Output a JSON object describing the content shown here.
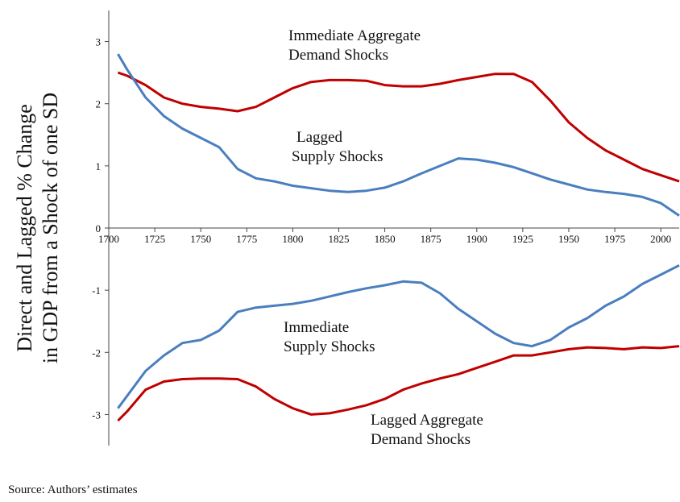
{
  "chart_data": {
    "type": "line",
    "y_label": "Direct and Lagged % Change in GDP from a Shock of one SD",
    "source": "Source: Authors’ estimates",
    "x": [
      1705,
      1710,
      1720,
      1730,
      1740,
      1750,
      1760,
      1770,
      1780,
      1790,
      1800,
      1810,
      1820,
      1830,
      1840,
      1850,
      1860,
      1870,
      1880,
      1890,
      1900,
      1910,
      1920,
      1930,
      1940,
      1950,
      1960,
      1970,
      1980,
      1990,
      2000,
      2010
    ],
    "series": [
      {
        "name": "Immediate Aggregate Demand Shocks",
        "color": "#c00000",
        "values": [
          2.5,
          2.45,
          2.3,
          2.1,
          2.0,
          1.95,
          1.92,
          1.88,
          1.95,
          2.1,
          2.25,
          2.35,
          2.38,
          2.38,
          2.37,
          2.3,
          2.28,
          2.28,
          2.32,
          2.38,
          2.43,
          2.48,
          2.48,
          2.35,
          2.05,
          1.7,
          1.45,
          1.25,
          1.1,
          0.95,
          0.85,
          0.75
        ]
      },
      {
        "name": "Lagged Supply Shocks",
        "color": "#4a7ebf",
        "values": [
          2.8,
          2.55,
          2.1,
          1.8,
          1.6,
          1.45,
          1.3,
          0.95,
          0.8,
          0.75,
          0.68,
          0.64,
          0.6,
          0.58,
          0.6,
          0.65,
          0.75,
          0.88,
          1.0,
          1.12,
          1.1,
          1.05,
          0.98,
          0.88,
          0.78,
          0.7,
          0.62,
          0.58,
          0.55,
          0.5,
          0.4,
          0.2
        ]
      },
      {
        "name": "Immediate Supply Shocks",
        "color": "#4a7ebf",
        "values": [
          -2.9,
          -2.7,
          -2.3,
          -2.05,
          -1.85,
          -1.8,
          -1.65,
          -1.35,
          -1.28,
          -1.25,
          -1.22,
          -1.17,
          -1.1,
          -1.03,
          -0.97,
          -0.92,
          -0.86,
          -0.88,
          -1.05,
          -1.3,
          -1.5,
          -1.7,
          -1.85,
          -1.9,
          -1.8,
          -1.6,
          -1.45,
          -1.25,
          -1.1,
          -0.9,
          -0.75,
          -0.6
        ]
      },
      {
        "name": "Lagged Aggregate Demand Shocks",
        "color": "#c00000",
        "values": [
          -3.1,
          -2.95,
          -2.6,
          -2.47,
          -2.43,
          -2.42,
          -2.42,
          -2.43,
          -2.55,
          -2.75,
          -2.9,
          -3.0,
          -2.98,
          -2.92,
          -2.85,
          -2.75,
          -2.6,
          -2.5,
          -2.42,
          -2.35,
          -2.25,
          -2.15,
          -2.05,
          -2.05,
          -2.0,
          -1.95,
          -1.92,
          -1.93,
          -1.95,
          -1.92,
          -1.93,
          -1.9
        ]
      }
    ],
    "xlim": [
      1700,
      2010
    ],
    "xticks": [
      1700,
      1725,
      1750,
      1775,
      1800,
      1825,
      1850,
      1875,
      1900,
      1925,
      1950,
      1975,
      2000
    ],
    "ylim": [
      -3.5,
      3.5
    ],
    "yticks": [
      3,
      2,
      1,
      0,
      -1,
      -2,
      -3
    ]
  }
}
